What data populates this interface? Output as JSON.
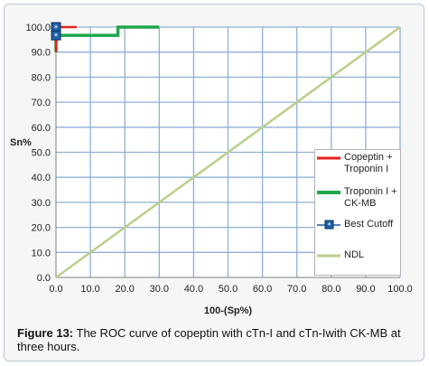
{
  "chart_data": {
    "type": "line",
    "xlabel": "100-(Sp%)",
    "ylabel": "Sn%",
    "xlim": [
      0,
      100
    ],
    "ylim": [
      0,
      100
    ],
    "x_ticks": [
      "0.0",
      "10.0",
      "20.0",
      "30.0",
      "40.0",
      "50.0",
      "60.0",
      "70.0",
      "80.0",
      "90.0",
      "100.0"
    ],
    "y_ticks": [
      "0.0",
      "10.0",
      "20.0",
      "30.0",
      "40.0",
      "50.0",
      "60.0",
      "70.0",
      "80.0",
      "90.0",
      "100.0"
    ],
    "grid": true,
    "legend_position": "right",
    "series": [
      {
        "name": "Copeptin + Troponin I",
        "color": "#e8211c",
        "x": [
          0,
          0,
          6
        ],
        "y": [
          90,
          100,
          100
        ]
      },
      {
        "name": "Troponin I + CK-MB",
        "color": "#1ea84b",
        "x": [
          0,
          0,
          18,
          18,
          30
        ],
        "y": [
          90,
          96.7,
          96.7,
          100,
          100
        ]
      },
      {
        "name": "Best Cutoff",
        "color": "#1d5fa6",
        "marker": "star-square",
        "x": [
          0,
          0
        ],
        "y": [
          100,
          96.7
        ]
      },
      {
        "name": "NDL",
        "color": "#b9cf8a",
        "x": [
          0,
          100
        ],
        "y": [
          0,
          100
        ]
      }
    ]
  },
  "caption": {
    "label": "Figure 13:",
    "text": " The ROC curve of copeptin with cTn-I and cTn-Iwith CK-MB at three hours."
  },
  "legend": {
    "items": [
      "Copeptin + Troponin I",
      "Troponin I + CK-MB",
      "Best Cutoff",
      "NDL"
    ]
  }
}
